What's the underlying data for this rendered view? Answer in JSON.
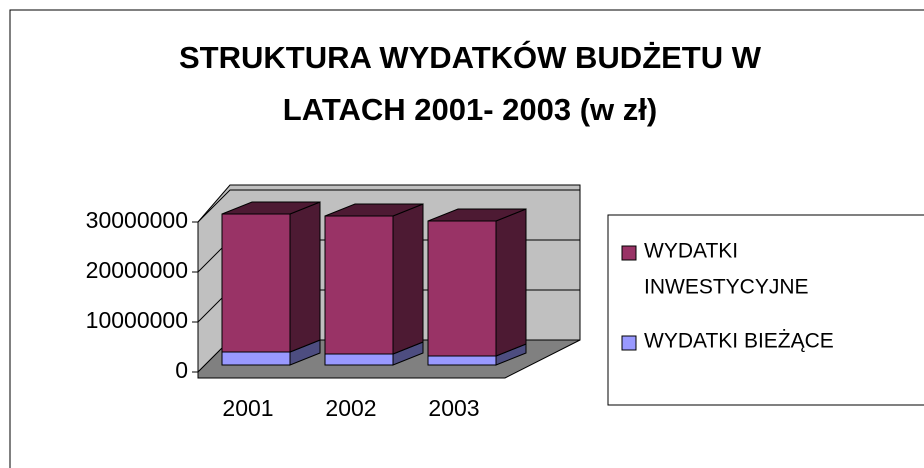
{
  "chart_data": {
    "type": "bar3d_stacked",
    "title_lines": [
      "STRUKTURA WYDATKÓW BUDŻETU W",
      "LATACH 2001- 2003 (w zł)"
    ],
    "categories": [
      "2001",
      "2002",
      "2003"
    ],
    "series": [
      {
        "name": "WYDATKI BIEŻĄCE",
        "color": "#9999ff",
        "side": "#4d4d80",
        "values": [
          2600000,
          2200000,
          1800000
        ]
      },
      {
        "name_lines": [
          "WYDATKI",
          "INWESTYCYJNE"
        ],
        "color": "#993366",
        "side": "#4d1a33",
        "values": [
          27600000,
          27600000,
          27000000
        ]
      }
    ],
    "ylim": [
      0,
      30000000
    ],
    "yticks": [
      0,
      10000000,
      20000000,
      30000000
    ],
    "grid": true
  }
}
